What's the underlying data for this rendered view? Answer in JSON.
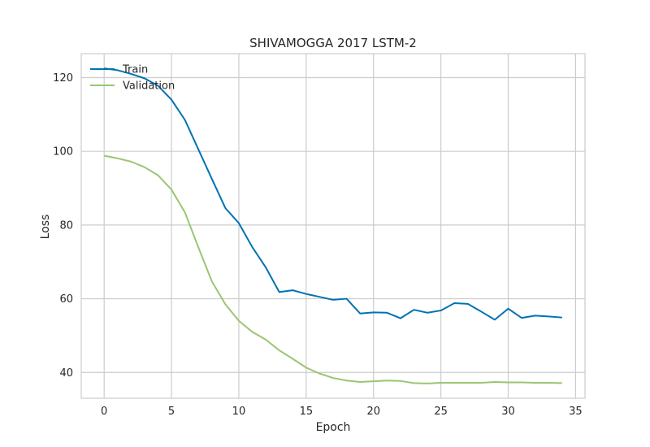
{
  "chart_data": {
    "type": "line",
    "title": "SHIVAMOGGA 2017 LSTM-2",
    "xlabel": "Epoch",
    "ylabel": "Loss",
    "xlim": [
      -1.7,
      35.7
    ],
    "ylim": [
      33,
      126.5
    ],
    "xticks": [
      0,
      5,
      10,
      15,
      20,
      25,
      30,
      35
    ],
    "yticks": [
      40,
      60,
      80,
      100,
      120
    ],
    "grid": true,
    "legend_position": "top-left",
    "x": [
      0,
      1,
      2,
      3,
      4,
      5,
      6,
      7,
      8,
      9,
      10,
      11,
      12,
      13,
      14,
      15,
      16,
      17,
      18,
      19,
      20,
      21,
      22,
      23,
      24,
      25,
      26,
      27,
      28,
      29,
      30,
      31,
      32,
      33,
      34
    ],
    "series": [
      {
        "name": "Train",
        "color": "#0072b2",
        "values": [
          122.5,
          122.0,
          121.0,
          119.8,
          117.8,
          114.0,
          108.5,
          100.5,
          92.5,
          84.6,
          80.5,
          74.0,
          68.5,
          61.8,
          62.3,
          61.3,
          60.5,
          59.7,
          60.0,
          56.0,
          56.3,
          56.2,
          54.7,
          57.0,
          56.2,
          56.8,
          58.8,
          58.6,
          56.5,
          54.3,
          57.3,
          54.8,
          55.4,
          55.2,
          54.9
        ]
      },
      {
        "name": "Validation",
        "color": "#9ac573",
        "values": [
          98.8,
          98.1,
          97.2,
          95.7,
          93.5,
          89.6,
          83.4,
          73.9,
          64.7,
          58.5,
          54.0,
          51.0,
          48.9,
          46.0,
          43.7,
          41.3,
          39.7,
          38.5,
          37.8,
          37.4,
          37.6,
          37.8,
          37.7,
          37.1,
          37.0,
          37.2,
          37.2,
          37.2,
          37.2,
          37.4,
          37.3,
          37.3,
          37.2,
          37.2,
          37.1
        ]
      }
    ]
  }
}
